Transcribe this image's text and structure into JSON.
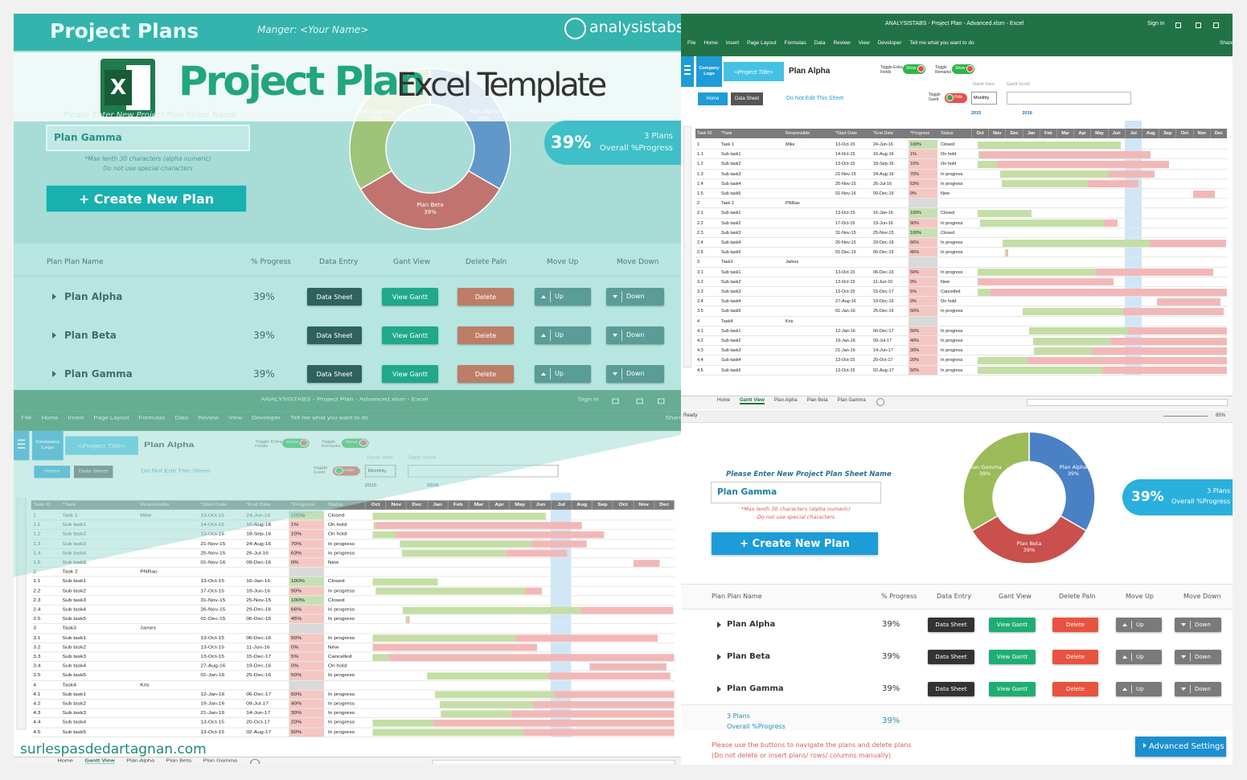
{
  "header": {
    "title": "Project Plans",
    "manager": "Manger: <Your Name>",
    "brand": "analysistabs"
  },
  "banner": {
    "icon": "X",
    "title": "Project Plan",
    "subtitle": "Excel Template"
  },
  "dashboard": {
    "prompt": "Please Enter New Project Plan Sheet Name",
    "input": "Plan Gamma",
    "hints": [
      "*Max lenth 30 characters (alpha numeric)",
      "Do not use special characters"
    ],
    "create_button": "+ Create New Plan",
    "summary": {
      "progress": "39%",
      "plans": "3 Plans",
      "caption": "Overall %Progress"
    },
    "donut": {
      "type": "pie",
      "series": [
        {
          "name": "Plan Alpha",
          "value": 39,
          "label": "39%",
          "color": "#4a80c4"
        },
        {
          "name": "Plan Beta",
          "value": 39,
          "label": "39%",
          "color": "#c9504c"
        },
        {
          "name": "Plan Gamma",
          "value": 39,
          "label": "39%",
          "color": "#9bbb59"
        }
      ]
    },
    "columns": [
      "Plan Plan Name",
      "% Progress",
      "Data Entry",
      "Gant View",
      "Delete Paln",
      "Move Up",
      "Move Down"
    ],
    "buttons": {
      "data": "Data Sheet",
      "view": "View Gantt",
      "delete": "Delete",
      "up": "Up",
      "down": "Down"
    },
    "plans": [
      {
        "name": "Plan Alpha",
        "progress": "39%"
      },
      {
        "name": "Plan Beta",
        "progress": "39%"
      },
      {
        "name": "Plan Gamma",
        "progress": "39%"
      }
    ],
    "footer": {
      "note": "Please use the buttons to navigate the plans and delete plans",
      "note2": "(Do not delete or insert plans/ rows/ columns manually)",
      "advanced": "Advanced Settings"
    }
  },
  "excel": {
    "window_title": "ANALYSISTABS - Project Plan - Advanced.xlsm - Excel",
    "sign_in": "Sign in",
    "ribbon": [
      "File",
      "Home",
      "Insert",
      "Page Layout",
      "Formulas",
      "Data",
      "Review",
      "View",
      "Developer"
    ],
    "tell_me": "Tell me what you want to do",
    "share": "Share",
    "company_logo": "Company Logo",
    "project_title": "<Project Title>",
    "plan": "Plan Alpha",
    "toggles": [
      "Toggle Extra Fields",
      "Toggle Remarks",
      "Toggle Gantt"
    ],
    "show": "Show",
    "hide": "Hide",
    "home": "Home",
    "data_sheet": "Data Sheet",
    "warning": "Do Not Edit This Sheet",
    "gantt_view": "Gantt View",
    "gantt_scroll": "Gantt Scroll",
    "scale": "Monthly",
    "years": [
      "2015",
      "2016"
    ],
    "months": [
      "Oct",
      "Nov",
      "Dec",
      "Jan",
      "Feb",
      "Mar",
      "Apr",
      "May",
      "Jun",
      "Jul",
      "Aug",
      "Sep",
      "Oct",
      "Nov",
      "Dec"
    ],
    "columns": [
      "Task ID",
      "*Task",
      "Responsible",
      "*Start Date",
      "*End Date",
      "*Progress",
      "Status"
    ],
    "rows": [
      [
        "1",
        "Task 1",
        "Mike",
        "13-Oct-15",
        "24-Jun-16",
        "100%",
        "Closed"
      ],
      [
        "1.1",
        "Sub task1",
        "",
        "14-Oct-15",
        "16-Aug-16",
        "1%",
        "On hold"
      ],
      [
        "1.2",
        "Sub task2",
        "",
        "13-Oct-15",
        "18-Sep-16",
        "10%",
        "On hold"
      ],
      [
        "1.3",
        "Sub task3",
        "",
        "21-Nov-15",
        "24-Aug-16",
        "70%",
        "In progress"
      ],
      [
        "1.4",
        "Sub task4",
        "",
        "25-Nov-15",
        "26-Jul-16",
        "63%",
        "In progress"
      ],
      [
        "1.5",
        "Sub task5",
        "",
        "01-Nov-16",
        "09-Dec-16",
        "0%",
        "New"
      ],
      [
        "2",
        "Task 2",
        "PNRao"
      ],
      [
        "2.1",
        "Sub task1",
        "",
        "13-Oct-15",
        "16-Jan-16",
        "100%",
        "Closed"
      ],
      [
        "2.2",
        "Sub task2",
        "",
        "17-Oct-15",
        "19-Jun-16",
        "90%",
        "In progress"
      ],
      [
        "2.3",
        "Sub task3",
        "",
        "31-Nov-15",
        "25-Nov-15",
        "100%",
        "Closed"
      ],
      [
        "2.4",
        "Sub task4",
        "",
        "26-Nov-15",
        "29-Dec-16",
        "66%",
        "In progress"
      ],
      [
        "2.5",
        "Sub task5",
        "",
        "01-Dec-15",
        "06-Dec-15",
        "45%",
        "In progress"
      ],
      [
        "3",
        "Task3",
        "James"
      ],
      [
        "3.1",
        "Sub task1",
        "",
        "13-Oct-15",
        "06-Dec-16",
        "50%",
        "In progress"
      ],
      [
        "3.2",
        "Sub task2",
        "",
        "13-Oct-15",
        "11-Jun-16",
        "0%",
        "New"
      ],
      [
        "3.3",
        "Sub task3",
        "",
        "13-Oct-15",
        "15-Dec-17",
        "5%",
        "Cancelled"
      ],
      [
        "3.4",
        "Sub task4",
        "",
        "27-Aug-16",
        "19-Dec-16",
        "0%",
        "On hold"
      ],
      [
        "3.5",
        "Sub task5",
        "",
        "01-Jan-16",
        "25-Dec-16",
        "50%",
        "In progress"
      ],
      [
        "4",
        "Task4",
        "Kris"
      ],
      [
        "4.1",
        "Sub task1",
        "",
        "12-Jan-16",
        "06-Dec-17",
        "50%",
        "In progress"
      ],
      [
        "4.2",
        "Sub task2",
        "",
        "19-Jan-16",
        "09-Jul-17",
        "40%",
        "In progress"
      ],
      [
        "4.3",
        "Sub task3",
        "",
        "21-Jan-16",
        "14-Jun-17",
        "30%",
        "In progress"
      ],
      [
        "4.4",
        "Sub task4",
        "",
        "13-Oct-15",
        "20-Oct-17",
        "20%",
        "In progress"
      ],
      [
        "4.5",
        "Sub task5",
        "",
        "13-Oct-15",
        "02-Aug-17",
        "50%",
        "In progress"
      ]
    ],
    "sheets": [
      "Home",
      "Gantt View",
      "Plan Alpha",
      "Plan Beta",
      "Plan Gamma"
    ],
    "status": "Ready",
    "zoom": "85%"
  },
  "watermark": "surlespasdedartagnan.com"
}
